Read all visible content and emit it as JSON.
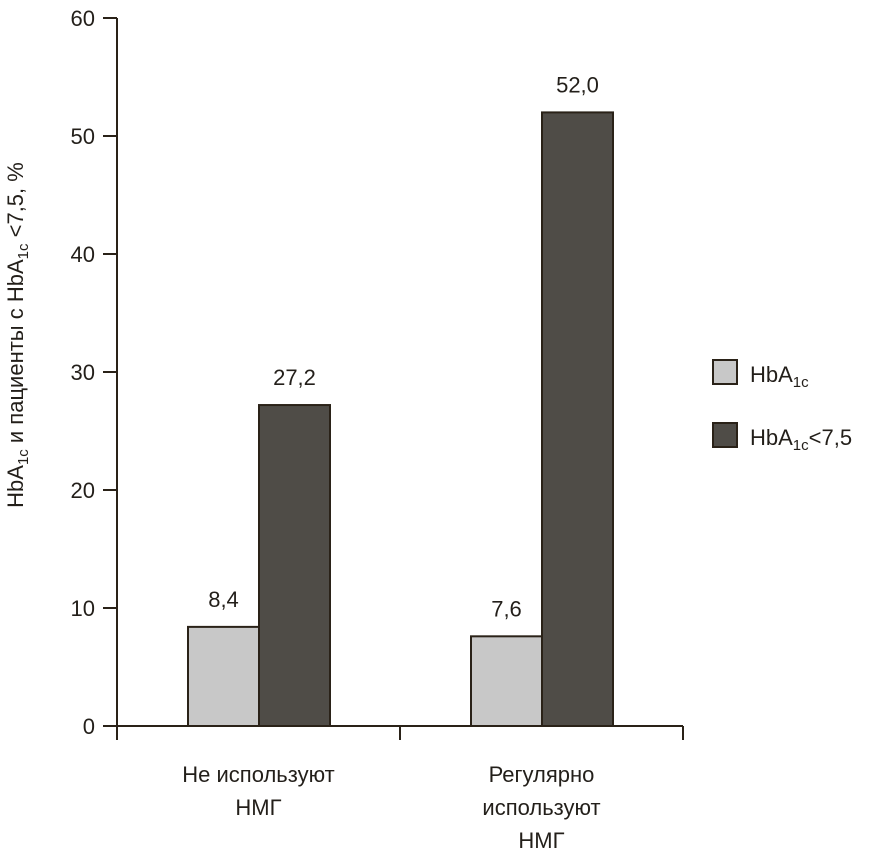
{
  "chart_data": {
    "type": "bar",
    "title": "",
    "categories": [
      {
        "lines": [
          "Не используют",
          "НМГ"
        ]
      },
      {
        "lines": [
          "Регулярно",
          "используют",
          "НМГ"
        ]
      }
    ],
    "series": [
      {
        "name": "HbA1c",
        "legend_main": "HbA",
        "legend_sub": "1c",
        "legend_tail": "",
        "values": [
          8.4,
          7.6
        ],
        "labels": [
          "8,4",
          "7,6"
        ],
        "color": "#c8c8c8"
      },
      {
        "name": "HbA1c<7,5",
        "legend_main": "HbA",
        "legend_sub": "1c",
        "legend_tail": "<7,5",
        "values": [
          27.2,
          52.0
        ],
        "labels": [
          "27,2",
          "52,0"
        ],
        "color": "#4f4c47"
      }
    ],
    "ylabel_parts": {
      "p1": "HbA",
      "s1": "1c",
      "p2": " и пациенты с HbA",
      "s2": "1c",
      "p3": " <7,5, %"
    },
    "ylabel": "HbA1c и пациенты с HbA1c <7,5, %",
    "xlabel": "",
    "ylim": [
      0,
      60
    ],
    "yticks": [
      0,
      10,
      20,
      30,
      40,
      50,
      60
    ],
    "legend_position": "right",
    "grid": false
  }
}
